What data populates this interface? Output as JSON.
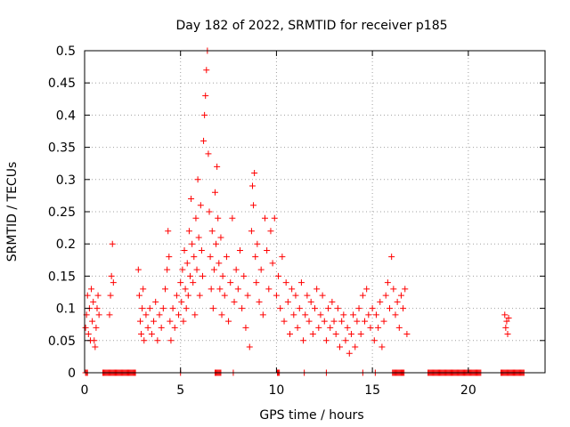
{
  "chart_data": {
    "type": "scatter",
    "title": "Day 182 of 2022, SRMTID for receiver p185",
    "xlabel": "GPS time / hours",
    "ylabel": "SRMTID / TECUs",
    "xlim": [
      0,
      24
    ],
    "ylim": [
      0,
      0.5
    ],
    "xticks": [
      0,
      5,
      10,
      15,
      20
    ],
    "xtick_labels": [
      "0",
      "5",
      "10",
      "15",
      "20"
    ],
    "yticks": [
      0,
      0.05,
      0.1,
      0.15,
      0.2,
      0.25,
      0.3,
      0.35,
      0.4,
      0.45,
      0.5
    ],
    "ytick_labels": [
      "0",
      "0.05",
      "0.1",
      "0.15",
      "0.2",
      "0.25",
      "0.3",
      "0.35",
      "0.4",
      "0.45",
      "0.5"
    ],
    "grid": true,
    "marker": "+",
    "marker_color": "#ff0000",
    "series": [
      {
        "points": [
          [
            0.05,
            0.07
          ],
          [
            0.1,
            0.09
          ],
          [
            0.15,
            0.12
          ],
          [
            0.2,
            0.06
          ],
          [
            0.25,
            0.1
          ],
          [
            0.3,
            0.05
          ],
          [
            0.35,
            0.13
          ],
          [
            0.4,
            0.08
          ],
          [
            0.45,
            0.11
          ],
          [
            0.5,
            0.05
          ],
          [
            0.55,
            0.04
          ],
          [
            0.6,
            0.07
          ],
          [
            0.65,
            0.1
          ],
          [
            0.7,
            0.12
          ],
          [
            0.75,
            0.09
          ],
          [
            1.3,
            0.09
          ],
          [
            1.35,
            0.12
          ],
          [
            1.4,
            0.15
          ],
          [
            1.45,
            0.2
          ],
          [
            1.5,
            0.14
          ],
          [
            2.8,
            0.16
          ],
          [
            2.85,
            0.12
          ],
          [
            2.9,
            0.08
          ],
          [
            2.95,
            0.06
          ],
          [
            3.0,
            0.1
          ],
          [
            3.05,
            0.13
          ],
          [
            3.1,
            0.05
          ],
          [
            3.2,
            0.09
          ],
          [
            3.3,
            0.07
          ],
          [
            3.4,
            0.1
          ],
          [
            3.5,
            0.06
          ],
          [
            3.6,
            0.08
          ],
          [
            3.7,
            0.11
          ],
          [
            3.8,
            0.05
          ],
          [
            3.9,
            0.09
          ],
          [
            4.0,
            0.07
          ],
          [
            4.1,
            0.1
          ],
          [
            4.2,
            0.13
          ],
          [
            4.3,
            0.16
          ],
          [
            4.35,
            0.22
          ],
          [
            4.4,
            0.18
          ],
          [
            4.45,
            0.08
          ],
          [
            4.5,
            0.05
          ],
          [
            4.6,
            0.1
          ],
          [
            4.7,
            0.07
          ],
          [
            4.8,
            0.12
          ],
          [
            4.9,
            0.09
          ],
          [
            5.0,
            0.14
          ],
          [
            5.05,
            0.11
          ],
          [
            5.1,
            0.16
          ],
          [
            5.15,
            0.08
          ],
          [
            5.2,
            0.19
          ],
          [
            5.25,
            0.13
          ],
          [
            5.3,
            0.1
          ],
          [
            5.35,
            0.17
          ],
          [
            5.4,
            0.12
          ],
          [
            5.45,
            0.22
          ],
          [
            5.5,
            0.15
          ],
          [
            5.55,
            0.27
          ],
          [
            5.6,
            0.2
          ],
          [
            5.65,
            0.14
          ],
          [
            5.7,
            0.18
          ],
          [
            5.75,
            0.09
          ],
          [
            5.8,
            0.24
          ],
          [
            5.85,
            0.16
          ],
          [
            5.9,
            0.3
          ],
          [
            5.95,
            0.21
          ],
          [
            6.0,
            0.12
          ],
          [
            6.05,
            0.26
          ],
          [
            6.1,
            0.19
          ],
          [
            6.15,
            0.15
          ],
          [
            6.2,
            0.36
          ],
          [
            6.25,
            0.4
          ],
          [
            6.3,
            0.43
          ],
          [
            6.35,
            0.47
          ],
          [
            6.4,
            0.5
          ],
          [
            6.45,
            0.34
          ],
          [
            6.5,
            0.25
          ],
          [
            6.55,
            0.18
          ],
          [
            6.6,
            0.13
          ],
          [
            6.65,
            0.22
          ],
          [
            6.7,
            0.1
          ],
          [
            6.75,
            0.16
          ],
          [
            6.8,
            0.28
          ],
          [
            6.85,
            0.2
          ],
          [
            6.9,
            0.32
          ],
          [
            6.95,
            0.24
          ],
          [
            7.0,
            0.17
          ],
          [
            7.05,
            0.13
          ],
          [
            7.1,
            0.21
          ],
          [
            7.15,
            0.09
          ],
          [
            7.2,
            0.15
          ],
          [
            7.3,
            0.12
          ],
          [
            7.4,
            0.18
          ],
          [
            7.5,
            0.08
          ],
          [
            7.6,
            0.14
          ],
          [
            7.7,
            0.24
          ],
          [
            7.8,
            0.11
          ],
          [
            7.9,
            0.16
          ],
          [
            8.0,
            0.13
          ],
          [
            8.1,
            0.19
          ],
          [
            8.2,
            0.1
          ],
          [
            8.3,
            0.15
          ],
          [
            8.4,
            0.07
          ],
          [
            8.5,
            0.12
          ],
          [
            8.6,
            0.04
          ],
          [
            8.7,
            0.22
          ],
          [
            8.75,
            0.29
          ],
          [
            8.8,
            0.26
          ],
          [
            8.85,
            0.31
          ],
          [
            8.9,
            0.18
          ],
          [
            8.95,
            0.14
          ],
          [
            9.0,
            0.2
          ],
          [
            9.1,
            0.11
          ],
          [
            9.2,
            0.16
          ],
          [
            9.3,
            0.09
          ],
          [
            9.4,
            0.24
          ],
          [
            9.5,
            0.19
          ],
          [
            9.6,
            0.13
          ],
          [
            9.7,
            0.22
          ],
          [
            9.8,
            0.17
          ],
          [
            9.9,
            0.24
          ],
          [
            10.0,
            0.12
          ],
          [
            10.1,
            0.15
          ],
          [
            10.2,
            0.1
          ],
          [
            10.3,
            0.18
          ],
          [
            10.4,
            0.08
          ],
          [
            10.5,
            0.14
          ],
          [
            10.6,
            0.11
          ],
          [
            10.7,
            0.06
          ],
          [
            10.8,
            0.13
          ],
          [
            10.9,
            0.09
          ],
          [
            11.0,
            0.12
          ],
          [
            11.1,
            0.07
          ],
          [
            11.2,
            0.1
          ],
          [
            11.3,
            0.14
          ],
          [
            11.4,
            0.05
          ],
          [
            11.5,
            0.09
          ],
          [
            11.6,
            0.12
          ],
          [
            11.7,
            0.08
          ],
          [
            11.8,
            0.11
          ],
          [
            11.9,
            0.06
          ],
          [
            12.0,
            0.1
          ],
          [
            12.1,
            0.13
          ],
          [
            12.2,
            0.07
          ],
          [
            12.3,
            0.09
          ],
          [
            12.4,
            0.12
          ],
          [
            12.5,
            0.08
          ],
          [
            12.6,
            0.05
          ],
          [
            12.7,
            0.1
          ],
          [
            12.8,
            0.07
          ],
          [
            12.9,
            0.11
          ],
          [
            13.0,
            0.08
          ],
          [
            13.1,
            0.06
          ],
          [
            13.2,
            0.1
          ],
          [
            13.3,
            0.04
          ],
          [
            13.4,
            0.08
          ],
          [
            13.5,
            0.09
          ],
          [
            13.6,
            0.05
          ],
          [
            13.7,
            0.07
          ],
          [
            13.8,
            0.03
          ],
          [
            13.9,
            0.06
          ],
          [
            14.0,
            0.09
          ],
          [
            14.1,
            0.04
          ],
          [
            14.2,
            0.08
          ],
          [
            14.3,
            0.1
          ],
          [
            14.4,
            0.06
          ],
          [
            14.5,
            0.12
          ],
          [
            14.6,
            0.08
          ],
          [
            14.7,
            0.13
          ],
          [
            14.8,
            0.09
          ],
          [
            14.9,
            0.07
          ],
          [
            15.0,
            0.1
          ],
          [
            15.1,
            0.05
          ],
          [
            15.2,
            0.09
          ],
          [
            15.3,
            0.07
          ],
          [
            15.4,
            0.11
          ],
          [
            15.5,
            0.04
          ],
          [
            15.6,
            0.08
          ],
          [
            15.7,
            0.12
          ],
          [
            15.8,
            0.14
          ],
          [
            15.9,
            0.1
          ],
          [
            16.0,
            0.18
          ],
          [
            16.1,
            0.13
          ],
          [
            16.2,
            0.09
          ],
          [
            16.3,
            0.11
          ],
          [
            16.4,
            0.07
          ],
          [
            16.5,
            0.12
          ],
          [
            16.6,
            0.1
          ],
          [
            16.7,
            0.13
          ],
          [
            16.8,
            0.06
          ],
          [
            21.9,
            0.09
          ],
          [
            21.95,
            0.07
          ],
          [
            22.0,
            0.08
          ],
          [
            22.05,
            0.06
          ],
          [
            22.1,
            0.085
          ]
        ]
      }
    ],
    "zero_runs": [
      [
        0.05,
        0.15
      ],
      [
        0.95,
        2.65
      ],
      [
        5.0,
        5.0
      ],
      [
        6.8,
        7.1
      ],
      [
        7.75,
        7.75
      ],
      [
        10.05,
        10.15
      ],
      [
        11.45,
        11.45
      ],
      [
        12.6,
        12.6
      ],
      [
        14.5,
        14.5
      ],
      [
        15.15,
        15.15
      ],
      [
        16.05,
        16.65
      ],
      [
        17.9,
        20.65
      ],
      [
        21.7,
        22.9
      ]
    ]
  }
}
